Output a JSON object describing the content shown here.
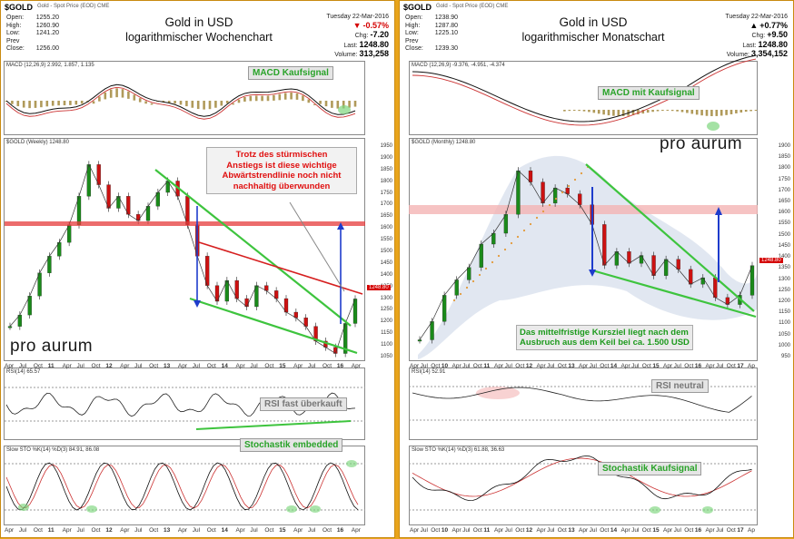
{
  "colors": {
    "frame": "#e8a51c",
    "callout_text": "#29a329",
    "price_red": "#d40000"
  },
  "left": {
    "ticker": "$GOLD",
    "ticker_sub": "Gold - Spot Price (EOD) CME",
    "date": "Tuesday 22-Mar-2016",
    "change_pct": "-0.57%",
    "change_arrow": "▼",
    "ohlc": [
      {
        "k": "Open:",
        "v": "1255.20"
      },
      {
        "k": "High:",
        "v": "1260.90"
      },
      {
        "k": "Low:",
        "v": "1241.20"
      },
      {
        "k": "Prev Close:",
        "v": "1256.00"
      }
    ],
    "stats": {
      "chg_label": "Chg:",
      "chg": "-7.20",
      "last_label": "Last:",
      "last": "1248.80",
      "volume_label": "Volume:",
      "volume": "313,258"
    },
    "title1": "Gold in USD",
    "title2": "logarithmischer Wochenchart",
    "macd_label": "MACD (12,26,9) 2.992, 1.857, 1.135",
    "price_label": "$GOLD (Weekly) 1248.80",
    "rsi_label": "RSI(14) 65.57",
    "sto_label": "Slow STO %K(14) %D(3) 84.91, 86.08",
    "callout_macd": "MACD Kaufsignal",
    "callout_rsi": "RSI fast überkauft",
    "callout_sto": "Stochastik embedded",
    "note_lines": [
      "Trotz des stürmischen",
      "Anstiegs ist diese wichtige",
      "Abwärtstrendlinie noch nicht",
      "nachhaltig überwunden"
    ],
    "logo": "pro aurum",
    "x_labels": [
      "Apr",
      "Jul",
      "Oct",
      "11",
      "Apr",
      "Jul",
      "Oct",
      "12",
      "Apr",
      "Jul",
      "Oct",
      "13",
      "Apr",
      "Jul",
      "Oct",
      "14",
      "Apr",
      "Jul",
      "Oct",
      "15",
      "Apr",
      "Jul",
      "Oct",
      "16",
      "Apr"
    ],
    "y_labels": [
      "1950",
      "1900",
      "1850",
      "1800",
      "1750",
      "1700",
      "1650",
      "1600",
      "1550",
      "1500",
      "1450",
      "1400",
      "1350",
      "1300",
      "1250",
      "1200",
      "1150",
      "1100",
      "1050"
    ],
    "last_tag": "1248.80"
  },
  "right": {
    "ticker": "$GOLD",
    "ticker_sub": "Gold - Spot Price (EOD) CME",
    "date": "Tuesday 22-Mar-2016",
    "change_pct": "+0.77%",
    "change_arrow": "▲",
    "ohlc": [
      {
        "k": "Open:",
        "v": "1238.90"
      },
      {
        "k": "High:",
        "v": "1287.80"
      },
      {
        "k": "Low:",
        "v": "1225.10"
      },
      {
        "k": "Prev Close:",
        "v": "1239.30"
      }
    ],
    "stats": {
      "chg_label": "Chg:",
      "chg": "+9.50",
      "last_label": "Last:",
      "last": "1248.80",
      "volume_label": "Volume:",
      "volume": "3,354,152"
    },
    "title1": "Gold in USD",
    "title2": "logarithmischer Monatschart",
    "macd_label": "MACD (12,26,9) -9.376, -4.951, -4.374",
    "price_label": "$GOLD (Monthly) 1248.80",
    "rsi_label": "RSI(14) 52.91",
    "sto_label": "Slow STO %K(14) %D(3) 61.88, 36.63",
    "callout_macd": "MACD mit Kaufsignal",
    "callout_rsi": "RSI neutral",
    "callout_sto": "Stochastik Kaufsignal",
    "note_lines": [
      "Das mittelfristige Kursziel liegt nach dem",
      "Ausbruch aus dem Keil bei ca. 1.500 USD"
    ],
    "logo": "pro aurum",
    "x_labels": [
      "Apr",
      "Jul",
      "Oct",
      "10",
      "Apr",
      "Jul",
      "Oct",
      "11",
      "Apr",
      "Jul",
      "Oct",
      "12",
      "Apr",
      "Jul",
      "Oct",
      "13",
      "Apr",
      "Jul",
      "Oct",
      "14",
      "Apr",
      "Jul",
      "Oct",
      "15",
      "Apr",
      "Jul",
      "Oct",
      "16",
      "Apr",
      "Jul",
      "Oct",
      "17",
      "Ap"
    ],
    "y_labels": [
      "1900",
      "1850",
      "1800",
      "1750",
      "1700",
      "1650",
      "1600",
      "1550",
      "1500",
      "1450",
      "1400",
      "1350",
      "1300",
      "1250",
      "1200",
      "1150",
      "1100",
      "1050",
      "1000",
      "950"
    ],
    "last_tag": "1248.80"
  },
  "chart_data": [
    {
      "type": "line",
      "title": "Gold in USD logarithmischer Wochenchart",
      "series": [
        {
          "name": "$GOLD (Weekly)",
          "values": [
            1150,
            1190,
            1260,
            1350,
            1420,
            1480,
            1560,
            1700,
            1870,
            1760,
            1640,
            1700,
            1610,
            1580,
            1650,
            1720,
            1780,
            1700,
            1560,
            1420,
            1300,
            1240,
            1320,
            1250,
            1220,
            1300,
            1280,
            1250,
            1200,
            1180,
            1150,
            1100,
            1080,
            1060,
            1160,
            1248.8
          ]
        }
      ],
      "ylim": [
        1050,
        1950
      ]
    },
    {
      "type": "line",
      "title": "Gold in USD logarithmischer Monatschart",
      "series": [
        {
          "name": "$GOLD (Monthly)",
          "values": [
            930,
            1000,
            1110,
            1180,
            1240,
            1360,
            1420,
            1530,
            1820,
            1740,
            1600,
            1700,
            1660,
            1590,
            1470,
            1250,
            1320,
            1260,
            1300,
            1200,
            1280,
            1230,
            1160,
            1190,
            1100,
            1070,
            1110,
            1248.8
          ]
        }
      ],
      "ylim": [
        870,
        1950
      ]
    }
  ]
}
